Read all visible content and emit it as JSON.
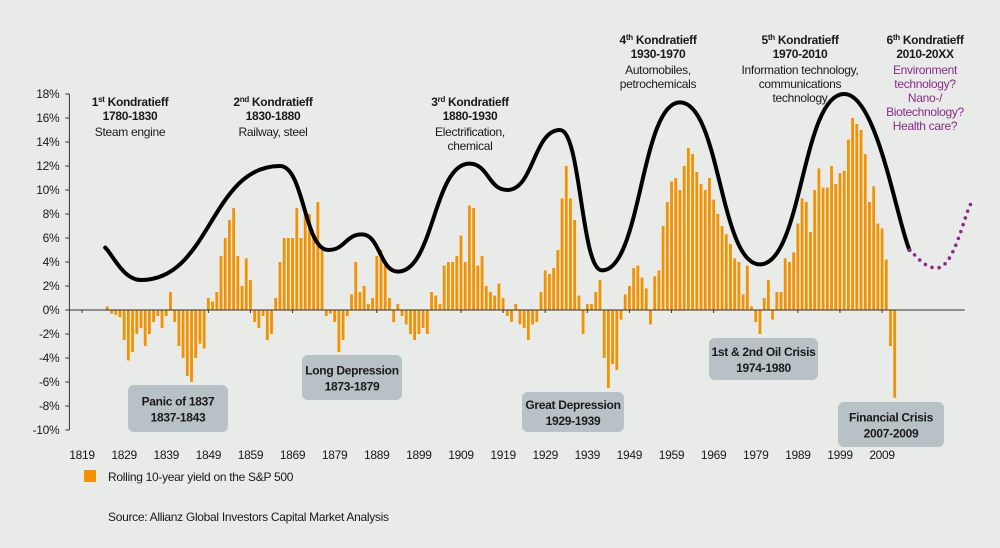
{
  "chart_data": {
    "type": "bar",
    "x": [
      1825,
      1826,
      1827,
      1828,
      1829,
      1830,
      1831,
      1832,
      1833,
      1834,
      1835,
      1836,
      1837,
      1838,
      1839,
      1840,
      1841,
      1842,
      1843,
      1844,
      1845,
      1846,
      1847,
      1848,
      1849,
      1850,
      1851,
      1852,
      1853,
      1854,
      1855,
      1856,
      1857,
      1858,
      1859,
      1860,
      1861,
      1862,
      1863,
      1864,
      1865,
      1866,
      1867,
      1868,
      1869,
      1870,
      1871,
      1872,
      1873,
      1874,
      1875,
      1876,
      1877,
      1878,
      1879,
      1880,
      1881,
      1882,
      1883,
      1884,
      1885,
      1886,
      1887,
      1888,
      1889,
      1890,
      1891,
      1892,
      1893,
      1894,
      1895,
      1896,
      1897,
      1898,
      1899,
      1900,
      1901,
      1902,
      1903,
      1904,
      1905,
      1906,
      1907,
      1908,
      1909,
      1910,
      1911,
      1912,
      1913,
      1914,
      1915,
      1916,
      1917,
      1918,
      1919,
      1920,
      1921,
      1922,
      1923,
      1924,
      1925,
      1926,
      1927,
      1928,
      1929,
      1930,
      1931,
      1932,
      1933,
      1934,
      1935,
      1936,
      1937,
      1938,
      1939,
      1940,
      1941,
      1942,
      1943,
      1944,
      1945,
      1946,
      1947,
      1948,
      1949,
      1950,
      1951,
      1952,
      1953,
      1954,
      1955,
      1956,
      1957,
      1958,
      1959,
      1960,
      1961,
      1962,
      1963,
      1964,
      1965,
      1966,
      1967,
      1968,
      1969,
      1970,
      1971,
      1972,
      1973,
      1974,
      1975,
      1976,
      1977,
      1978,
      1979,
      1980,
      1981,
      1982,
      1983,
      1984,
      1985,
      1986,
      1987,
      1988,
      1989,
      1990,
      1991,
      1992,
      1993,
      1994,
      1995,
      1996,
      1997,
      1998,
      1999,
      2000,
      2001,
      2002,
      2003,
      2004,
      2005,
      2006,
      2007,
      2008,
      2009,
      2010,
      2011,
      2012
    ],
    "series": [
      {
        "name": "Rolling 10-year yield on the S&P 500",
        "color": "#f39200",
        "values": [
          0.3,
          -0.3,
          -0.4,
          -0.6,
          -2.5,
          -4.2,
          -3.5,
          -2,
          -1.5,
          -3,
          -2,
          -1,
          -0.5,
          -1.5,
          -0.5,
          1.5,
          -1,
          -3,
          -4,
          -5.5,
          -6,
          -4,
          -2.8,
          -3.2,
          1,
          0.7,
          1.5,
          4.5,
          6,
          7.5,
          8.5,
          4.5,
          2,
          4.3,
          2.5,
          -1,
          -1.5,
          -0.5,
          -2.5,
          -2,
          1,
          4,
          6,
          6,
          6,
          8.5,
          6,
          8,
          8,
          6,
          9,
          5,
          -0.5,
          -0.3,
          -1,
          -3.5,
          -2.5,
          -0.5,
          1.3,
          4,
          1.5,
          2,
          0.5,
          1,
          4.5,
          5,
          4,
          1,
          -1,
          0.5,
          -0.5,
          -1.2,
          -2,
          -2.5,
          -2,
          -1.5,
          -2,
          1.5,
          1.2,
          0.5,
          3.7,
          4,
          4,
          4.5,
          6.2,
          4,
          8.7,
          8.5,
          3.7,
          4.5,
          2,
          1.5,
          1.2,
          2.2,
          1,
          -0.5,
          -1,
          0.5,
          -1.2,
          -1.5,
          -2.5,
          -1.2,
          -1,
          1.5,
          3.3,
          3,
          3.5,
          5,
          9.3,
          12,
          9.3,
          7.5,
          1.2,
          -2,
          0.5,
          0.5,
          1.5,
          2.5,
          -4,
          -6.5,
          -4.5,
          -5,
          -0.8,
          1.3,
          2,
          3.5,
          3.7,
          2.7,
          1.8,
          -1.2,
          2.8,
          3.3,
          7,
          9,
          10.7,
          11,
          10,
          12,
          13.5,
          13,
          11.5,
          10.5,
          10,
          11,
          9.2,
          8,
          7,
          6.3,
          5.5,
          4.3,
          4,
          1.3,
          3.7,
          0.3,
          -1,
          -2,
          1,
          2.5,
          -0.8,
          1.5,
          1.5,
          4.3,
          4,
          4.8,
          7.2,
          9.3,
          9,
          6.5,
          10,
          11.8,
          10.2,
          10.2,
          12,
          10.5,
          11.4,
          11.6,
          14.2,
          16,
          15.5,
          15,
          13,
          9,
          10.3,
          7.2,
          6.8,
          4.2,
          -3,
          -7.3
        ]
      }
    ],
    "curves": [
      {
        "style": "solid",
        "color": "#000000",
        "x": [
          1824.5,
          1833,
          1866,
          1877.5,
          1885.5,
          1894,
          1911,
          1920,
          1932.5,
          1942.5,
          1961,
          1980,
          2000,
          2015.5
        ],
        "values": [
          5.2,
          2.5,
          12,
          5,
          6.3,
          3.2,
          12.2,
          10,
          15,
          3.3,
          17.3,
          3.8,
          18,
          5
        ]
      },
      {
        "style": "dotted",
        "color": "#8b2a8b",
        "x": [
          2015.5,
          2022,
          2030
        ],
        "values": [
          5,
          3.5,
          8.8
        ]
      }
    ],
    "xlim": [
      1816,
      2031
    ],
    "xticks": [
      1819,
      1829,
      1839,
      1849,
      1859,
      1869,
      1879,
      1889,
      1899,
      1909,
      1919,
      1929,
      1939,
      1949,
      1959,
      1969,
      1979,
      1989,
      1999,
      2009
    ],
    "ylim": [
      -10,
      18
    ],
    "yticks": [
      {
        "value": -10,
        "label": "-10%"
      },
      {
        "value": -8,
        "label": "-8%"
      },
      {
        "value": -6,
        "label": "-6%"
      },
      {
        "value": -4,
        "label": "-4%"
      },
      {
        "value": -2,
        "label": "-2%"
      },
      {
        "value": 0,
        "label": "0%"
      },
      {
        "value": 2,
        "label": "2%"
      },
      {
        "value": 4,
        "label": "4%"
      },
      {
        "value": 6,
        "label": "6%"
      },
      {
        "value": 8,
        "label": "8%"
      },
      {
        "value": 10,
        "label": "10%"
      },
      {
        "value": 12,
        "label": "12%"
      },
      {
        "value": 14,
        "label": "14%"
      },
      {
        "value": 16,
        "label": "16%"
      },
      {
        "value": 18,
        "label": "18%"
      }
    ],
    "kondratieff": [
      {
        "number": "1",
        "suffix": "st",
        "label": "Kondratieff",
        "years": "1780-1830",
        "lines": [
          "Steam engine"
        ]
      },
      {
        "number": "2",
        "suffix": "nd",
        "label": "Kondratieff",
        "years": "1830-1880",
        "lines": [
          "Railway, steel"
        ]
      },
      {
        "number": "3",
        "suffix": "rd",
        "label": "Kondratieff",
        "years": "1880-1930",
        "lines": [
          "Electrification,",
          "chemical"
        ]
      },
      {
        "number": "4",
        "suffix": "th",
        "label": "Kondratieff",
        "years": "1930-1970",
        "lines": [
          "Automobiles,",
          "petrochemicals"
        ]
      },
      {
        "number": "5",
        "suffix": "th",
        "label": "Kondratieff",
        "years": "1970-2010",
        "lines": [
          "Information technology,",
          "communications",
          "technology"
        ]
      },
      {
        "number": "6",
        "suffix": "th",
        "label": "Kondratieff",
        "years": "2010-20XX",
        "lines": [
          "Environment",
          "technology?",
          "Nano-/",
          "Biotechnology?",
          "Health care?"
        ]
      }
    ],
    "crises": [
      {
        "label": "Panic of 1837",
        "years": "1837-1843"
      },
      {
        "label": "Long Depression",
        "years": "1873-1879"
      },
      {
        "label": "Great Depression",
        "years": "1929-1939"
      },
      {
        "label": "1st & 2nd Oil Crisis",
        "years": "1974-1980"
      },
      {
        "label": "Financial Crisis",
        "years": "2007-2009"
      }
    ],
    "source": "Source: Allianz Global Investors Capital Market Analysis"
  }
}
